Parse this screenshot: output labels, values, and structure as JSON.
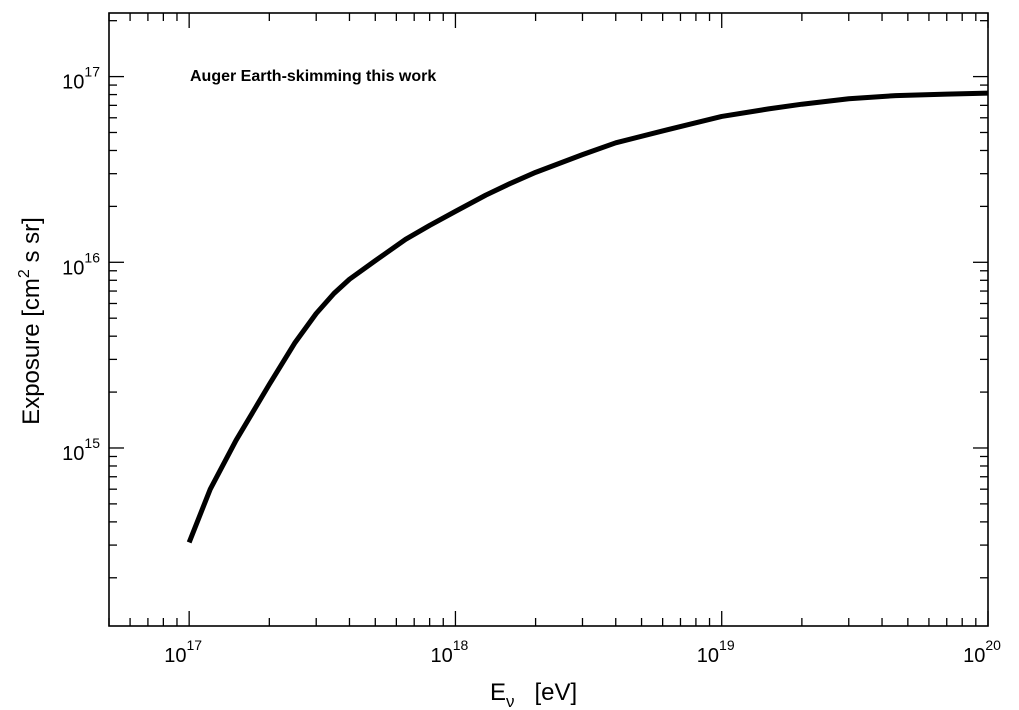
{
  "chart_data": {
    "type": "line",
    "title": "",
    "xlabel": "E",
    "xlabel_sub": "ν",
    "xlabel_unit": "[eV]",
    "ylabel": "Exposure  [cm",
    "ylabel_sup": "2",
    "ylabel_unit": " s sr]",
    "xscale": "log",
    "yscale": "log",
    "xlim": [
      5e+16,
      1e+20
    ],
    "ylim": [
      110000000000000.0,
      2.2e+17
    ],
    "grid": false,
    "x_tick_labels": [
      {
        "value": 1e+17,
        "base": "10",
        "exp": "17"
      },
      {
        "value": 1e+18,
        "base": "10",
        "exp": "18"
      },
      {
        "value": 1e+19,
        "base": "10",
        "exp": "19"
      },
      {
        "value": 1e+20,
        "base": "10",
        "exp": "20"
      }
    ],
    "y_tick_labels": [
      {
        "value": 1000000000000000.0,
        "base": "10",
        "exp": "15"
      },
      {
        "value": 1e+16,
        "base": "10",
        "exp": "16"
      },
      {
        "value": 1e+17,
        "base": "10",
        "exp": "17"
      }
    ],
    "annotations": [
      {
        "text": "Auger Earth-skimming this work",
        "position": "top-left"
      }
    ],
    "series": [
      {
        "label": "Auger Earth-skimming this work",
        "color": "#000000",
        "x": [
          1e+17,
          1.2e+17,
          1.5e+17,
          2e+17,
          2.5e+17,
          3e+17,
          3.5e+17,
          4e+17,
          5e+17,
          6.5e+17,
          8e+17,
          1e+18,
          1.3e+18,
          1.6e+18,
          2e+18,
          3e+18,
          4e+18,
          6e+18,
          1e+19,
          1.5e+19,
          2e+19,
          3e+19,
          4.5e+19,
          7e+19,
          1e+20
        ],
        "y": [
          310000000000000.0,
          600000000000000.0,
          1100000000000000.0,
          2200000000000000.0,
          3700000000000000.0,
          5300000000000000.0,
          6800000000000000.0,
          8100000000000000.0,
          1.02e+16,
          1.33e+16,
          1.58e+16,
          1.88e+16,
          2.3e+16,
          2.65e+16,
          3.05e+16,
          3.8e+16,
          4.4e+16,
          5.1e+16,
          6.1e+16,
          6.7e+16,
          7.1e+16,
          7.6e+16,
          7.9e+16,
          8.05e+16,
          8.15e+16
        ]
      }
    ]
  },
  "colors": {
    "background": "#ffffff",
    "axes": "#000000",
    "line": "#000000"
  }
}
